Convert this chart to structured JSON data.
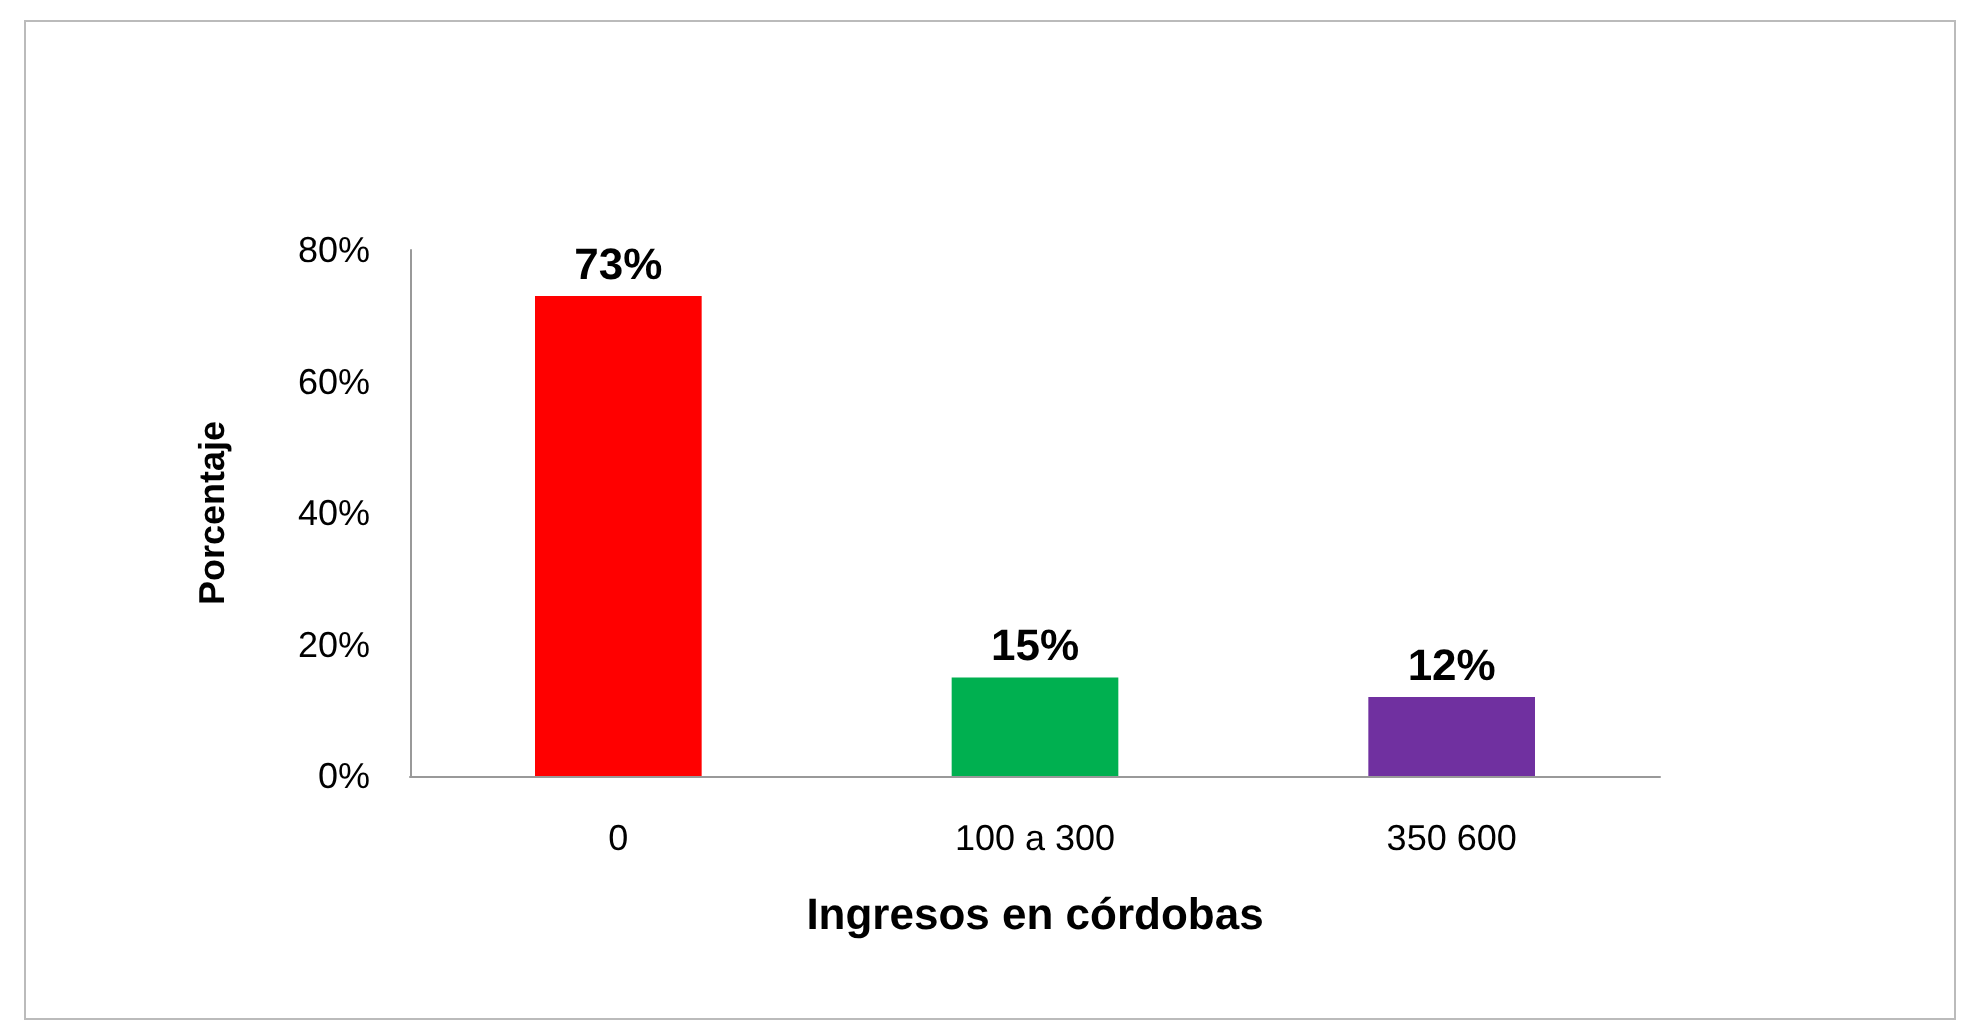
{
  "chart_data": {
    "type": "bar",
    "xlabel": "Ingresos en córdobas",
    "ylabel": "Porcentaje",
    "categories": [
      "0",
      "100 a 300",
      "350 600"
    ],
    "values": [
      73,
      15,
      12
    ],
    "colors": [
      "#ff0000",
      "#00b050",
      "#7030a0"
    ],
    "value_labels": [
      "73%",
      "15%",
      "12%"
    ],
    "ylim": [
      0,
      80
    ],
    "yticks": [
      {
        "value": 0,
        "label": "0%"
      },
      {
        "value": 20,
        "label": "20%"
      },
      {
        "value": 40,
        "label": "40%"
      },
      {
        "value": 60,
        "label": "60%"
      },
      {
        "value": 80,
        "label": "80%"
      }
    ],
    "grid": false
  }
}
